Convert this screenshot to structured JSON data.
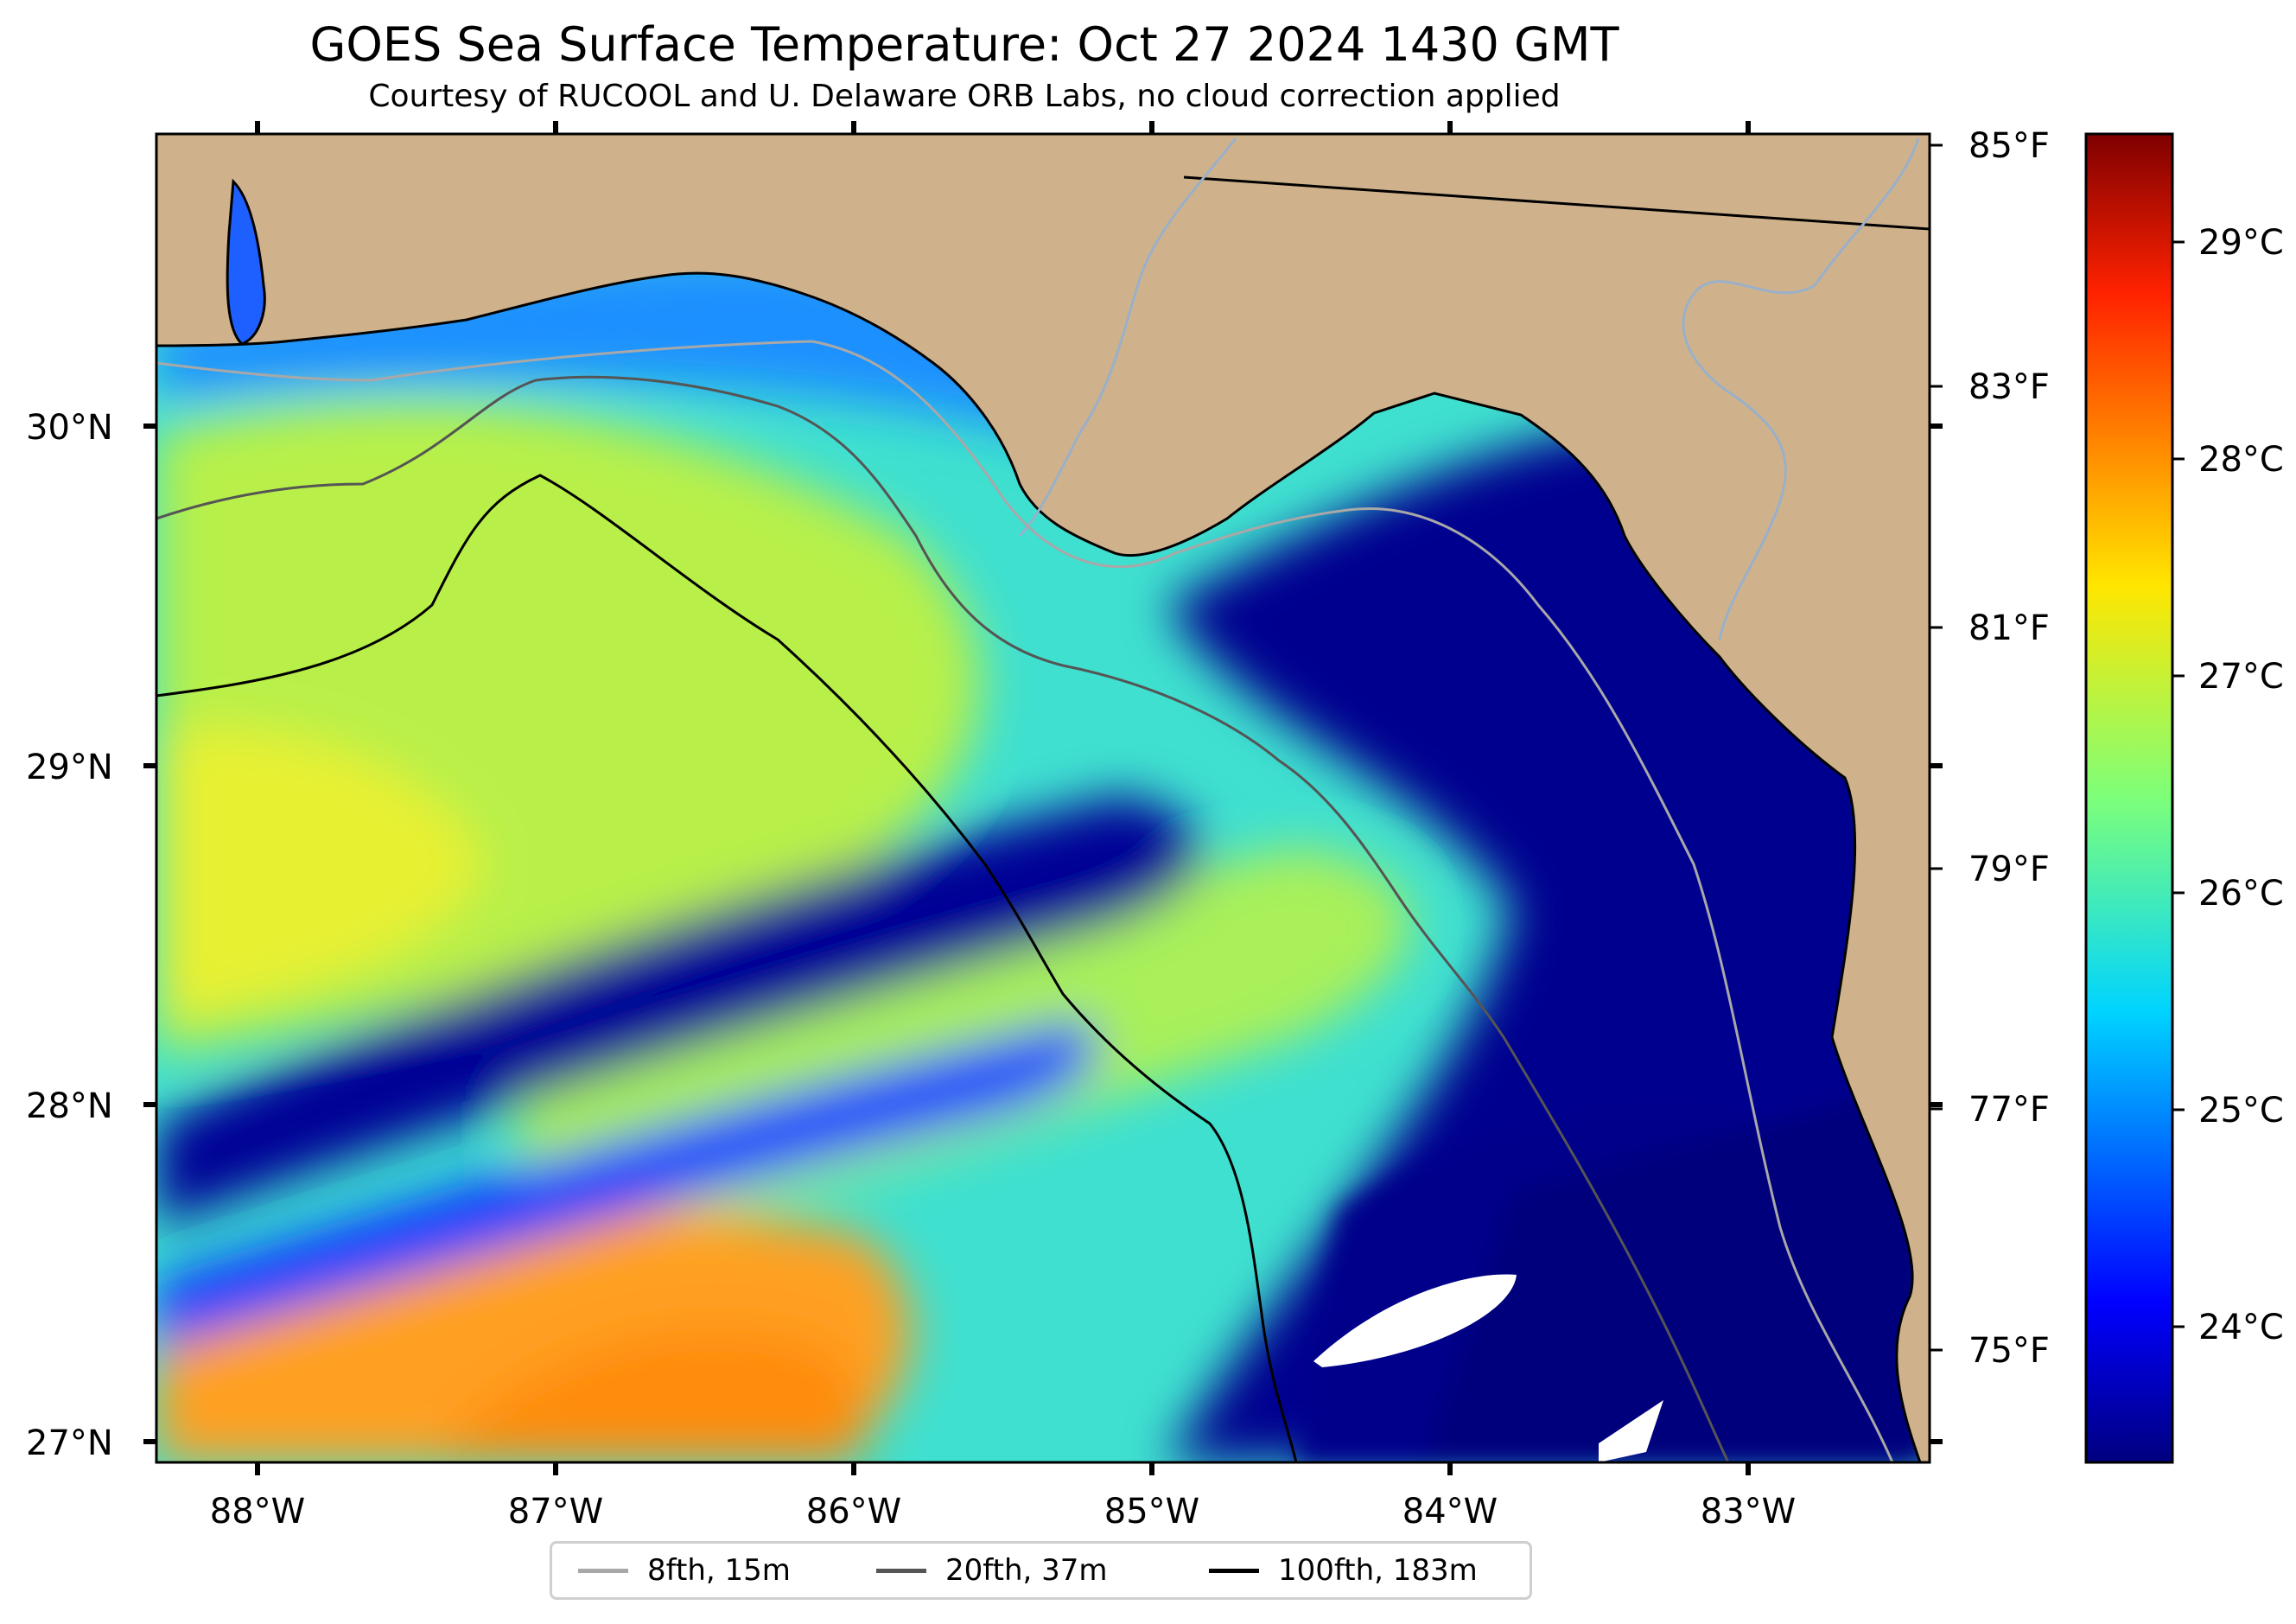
{
  "title": "GOES Sea Surface Temperature: Oct 27 2024 1430 GMT",
  "subtitle": "Courtesy of RUCOOL and U. Delaware ORB Labs, no cloud correction applied",
  "map": {
    "lat_labels": [
      "30°N",
      "29°N",
      "28°N",
      "27°N"
    ],
    "lon_labels": [
      "88°W",
      "87°W",
      "86°W",
      "85°W",
      "84°W",
      "83°W"
    ],
    "right_f_labels": [
      "85°F",
      "83°F",
      "81°F",
      "79°F",
      "77°F",
      "75°F"
    ],
    "land_color": "#cfb28c",
    "missing_color": "#ffffff"
  },
  "colorbar": {
    "colormap": "jet",
    "labels": [
      "29°C",
      "28°C",
      "27°C",
      "26°C",
      "25°C",
      "24°C"
    ]
  },
  "legend": {
    "items": [
      {
        "label": "8fth, 15m",
        "color": "#a8a8a8"
      },
      {
        "label": "20fth, 37m",
        "color": "#555555"
      },
      {
        "label": "100fth, 183m",
        "color": "#000000"
      }
    ]
  }
}
